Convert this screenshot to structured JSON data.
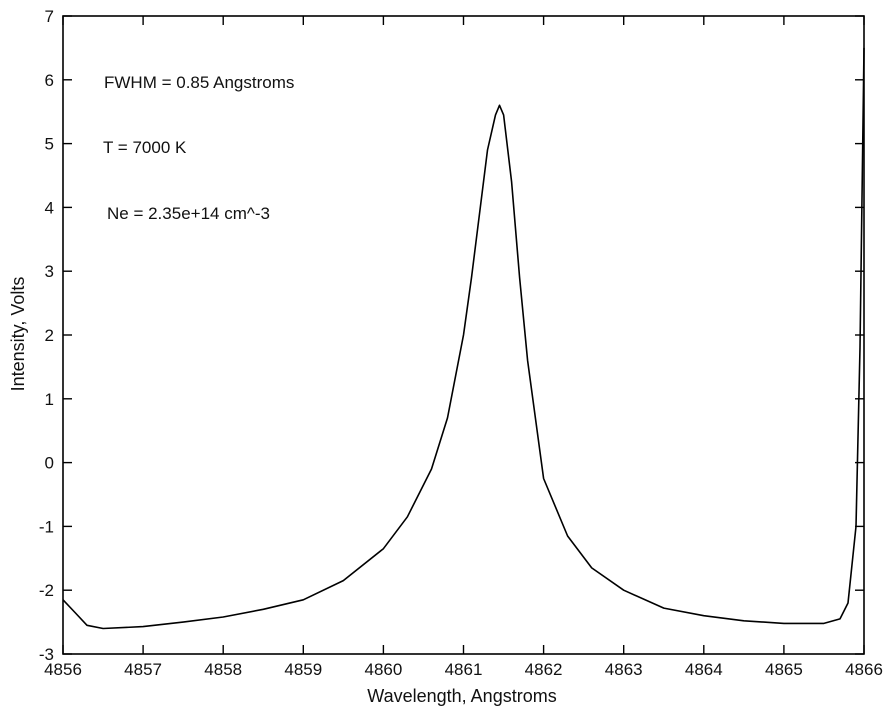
{
  "chart_data": {
    "type": "line",
    "title": "",
    "xlabel": "Wavelength, Angstroms",
    "ylabel": "Intensity, Volts",
    "xlim": [
      4856,
      4866
    ],
    "ylim": [
      -3,
      7
    ],
    "xticks": [
      "4856",
      "4857",
      "4858",
      "4859",
      "4860",
      "4861",
      "4862",
      "4863",
      "4864",
      "4865",
      "4866"
    ],
    "yticks": [
      "-3",
      "-2",
      "-1",
      "0",
      "1",
      "2",
      "3",
      "4",
      "5",
      "6",
      "7"
    ],
    "grid": false,
    "annotations": [
      "FWHM = 0.85 Angstroms",
      "T = 7000 K",
      "Ne = 2.35e+14 cm^-3"
    ],
    "series": [
      {
        "x": [
          4856.0,
          4856.15,
          4856.3,
          4856.5,
          4857.0,
          4857.5,
          4858.0,
          4858.5,
          4859.0,
          4859.5,
          4860.0,
          4860.3,
          4860.6,
          4860.8,
          4861.0,
          4861.1,
          4861.2,
          4861.3,
          4861.4,
          4861.45,
          4861.5,
          4861.6,
          4861.7,
          4861.8,
          4862.0,
          4862.3,
          4862.6,
          4863.0,
          4863.5,
          4864.0,
          4864.5,
          4865.0,
          4865.5,
          4865.7,
          4865.8,
          4865.9,
          4865.95,
          4866.0
        ],
        "y": [
          -2.15,
          -2.35,
          -2.55,
          -2.6,
          -2.57,
          -2.5,
          -2.42,
          -2.3,
          -2.15,
          -1.85,
          -1.35,
          -0.85,
          -0.1,
          0.7,
          2.0,
          2.9,
          3.9,
          4.9,
          5.45,
          5.6,
          5.45,
          4.4,
          2.9,
          1.6,
          -0.25,
          -1.15,
          -1.65,
          -2.0,
          -2.28,
          -2.4,
          -2.48,
          -2.52,
          -2.52,
          -2.45,
          -2.2,
          -1.0,
          1.8,
          6.5
        ]
      }
    ]
  }
}
